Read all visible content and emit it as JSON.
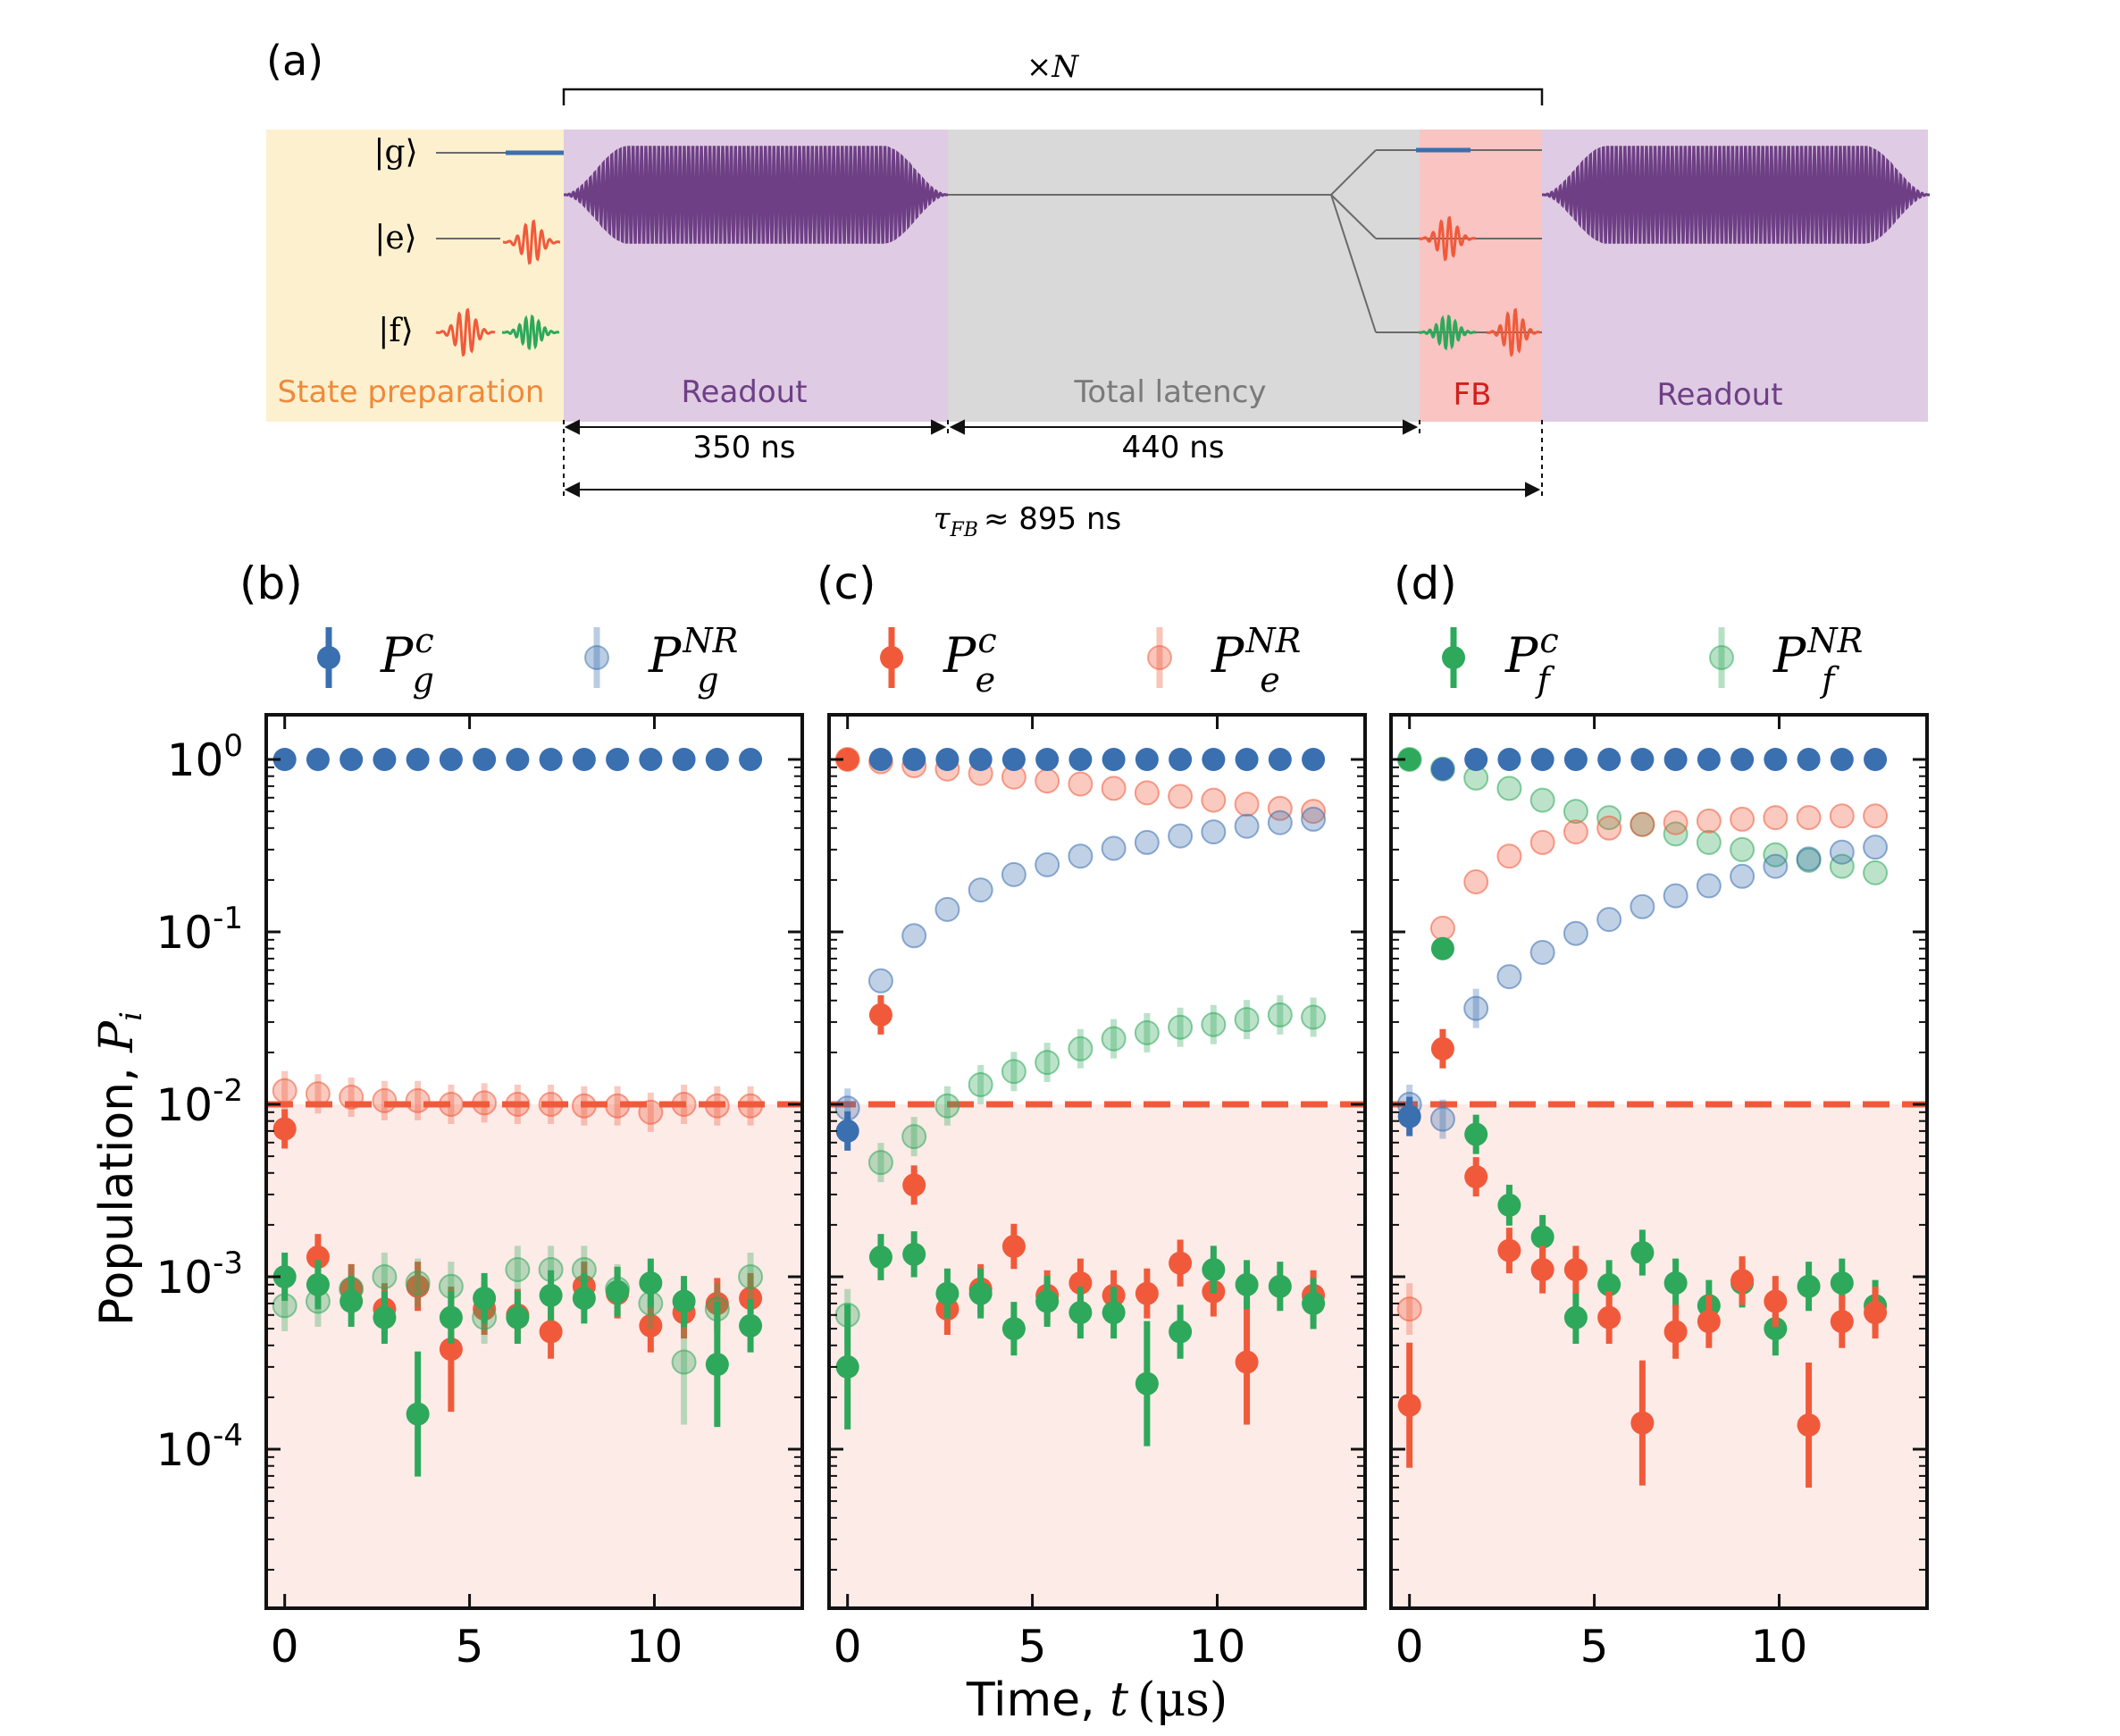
{
  "colors": {
    "g": "#3a6fb0",
    "e": "#f05a3a",
    "f": "#2ea85a",
    "prep_bg": "#fdf0cf",
    "readout_bg": "#dfcbe4",
    "latency_bg": "#d9d9d9",
    "fb_bg": "#f9c4c2",
    "shade": "#fdebe8",
    "purple": "#6e3f85"
  },
  "schematic": {
    "panel_label": "(a)",
    "repeat_label": "×N",
    "levels": [
      "|g⟩",
      "|e⟩",
      "|f⟩"
    ],
    "blocks": {
      "prep": "State preparation",
      "readout1": "Readout",
      "latency": "Total latency",
      "fb": "FB",
      "readout2": "Readout"
    },
    "dim_readout": "350 ns",
    "dim_latency": "440 ns",
    "tau_symbol": "τ",
    "tau_sub": "FB",
    "tau_value": "≈ 895 ns"
  },
  "axis": {
    "ylabel_prefix": "Population, ",
    "ylabel_symbol": "P",
    "ylabel_sub": "i",
    "xlabel_prefix": "Time, ",
    "xlabel_symbol": "t",
    "xlabel_unit": "(μs)"
  },
  "chart_data": [
    {
      "type": "scatter",
      "panel_label": "(b)",
      "legend": [
        {
          "sym": "P",
          "sub": "g",
          "sup": "c",
          "series": "g",
          "faded": false
        },
        {
          "sym": "P",
          "sub": "g",
          "sup": "NR",
          "series": "g",
          "faded": true
        }
      ],
      "xlim": [
        -0.5,
        14
      ],
      "ylim": [
        1e-05,
        2
      ],
      "yscale": "log",
      "xticks": [
        0,
        5,
        10
      ],
      "yticks": [
        "10^0",
        "10^-1",
        "10^-2",
        "10^-3",
        "10^-4"
      ],
      "threshold": 0.01,
      "x": [
        0,
        0.9,
        1.8,
        2.7,
        3.6,
        4.5,
        5.4,
        6.3,
        7.2,
        8.1,
        9.0,
        9.9,
        10.8,
        11.7,
        12.6
      ],
      "series": [
        {
          "level": "g",
          "faded": false,
          "y": [
            1,
            1,
            1,
            1,
            1,
            1,
            1,
            1,
            1,
            1,
            1,
            1,
            1,
            1,
            1
          ]
        },
        {
          "level": "e",
          "faded": true,
          "y": [
            0.012,
            0.0115,
            0.011,
            0.0105,
            0.0105,
            0.01,
            0.0102,
            0.01,
            0.01,
            0.0098,
            0.0098,
            0.009,
            0.01,
            0.0098,
            0.0098
          ]
        },
        {
          "level": "e",
          "faded": false,
          "y": [
            0.0072,
            0.0013,
            0.00085,
            0.00065,
            0.00088,
            0.00038,
            0.00065,
            0.0006,
            0.00048,
            0.00088,
            0.0008,
            0.00052,
            0.00062,
            0.0007,
            0.00075
          ]
        },
        {
          "level": "f",
          "faded": true,
          "y": [
            0.00068,
            0.00072,
            0.00085,
            0.001,
            0.00092,
            0.00088,
            0.00058,
            0.0011,
            0.0011,
            0.0011,
            0.00085,
            0.0007,
            0.00032,
            0.00065,
            0.001
          ]
        },
        {
          "level": "f",
          "faded": false,
          "y": [
            0.001,
            0.0009,
            0.00072,
            0.00058,
            0.00016,
            0.00058,
            0.00075,
            0.00058,
            0.00078,
            0.00075,
            0.00082,
            0.00092,
            0.00072,
            0.00031,
            0.00052
          ]
        }
      ]
    },
    {
      "type": "scatter",
      "panel_label": "(c)",
      "legend": [
        {
          "sym": "P",
          "sub": "e",
          "sup": "c",
          "series": "e",
          "faded": false
        },
        {
          "sym": "P",
          "sub": "e",
          "sup": "NR",
          "series": "e",
          "faded": true
        }
      ],
      "xlim": [
        -0.5,
        14
      ],
      "ylim": [
        1e-05,
        2
      ],
      "yscale": "log",
      "xticks": [
        0,
        5,
        10
      ],
      "threshold": 0.01,
      "x": [
        0,
        0.9,
        1.8,
        2.7,
        3.6,
        4.5,
        5.4,
        6.3,
        7.2,
        8.1,
        9.0,
        9.9,
        10.8,
        11.7,
        12.6
      ],
      "series": [
        {
          "level": "e",
          "faded": true,
          "y": [
            1,
            0.97,
            0.92,
            0.88,
            0.83,
            0.79,
            0.75,
            0.72,
            0.68,
            0.64,
            0.61,
            0.58,
            0.55,
            0.52,
            0.5
          ]
        },
        {
          "level": "g",
          "faded": true,
          "y": [
            0.0095,
            0.052,
            0.095,
            0.135,
            0.175,
            0.215,
            0.245,
            0.275,
            0.305,
            0.33,
            0.36,
            0.38,
            0.41,
            0.43,
            0.45
          ]
        },
        {
          "level": "f",
          "faded": true,
          "y": [
            0.0006,
            0.0046,
            0.0065,
            0.0098,
            0.013,
            0.0155,
            0.0175,
            0.021,
            0.024,
            0.026,
            0.028,
            0.029,
            0.031,
            0.033,
            0.032
          ]
        },
        {
          "level": "g",
          "faded": false,
          "y": [
            0.007,
            1,
            1,
            1,
            1,
            1,
            1,
            1,
            1,
            1,
            1,
            1,
            1,
            1,
            1
          ]
        },
        {
          "level": "e",
          "faded": false,
          "y": [
            1,
            0.033,
            0.0034,
            0.00065,
            0.00085,
            0.0015,
            0.00078,
            0.00092,
            0.00078,
            0.0008,
            0.0012,
            0.00082,
            0.00032,
            null,
            0.00078
          ]
        },
        {
          "level": "f",
          "faded": false,
          "y": [
            0.0003,
            0.0013,
            0.00135,
            0.0008,
            0.0008,
            0.0005,
            0.00072,
            0.00062,
            0.00062,
            0.00024,
            0.00048,
            0.0011,
            0.0009,
            0.00088,
            0.0007
          ]
        }
      ]
    },
    {
      "type": "scatter",
      "panel_label": "(d)",
      "legend": [
        {
          "sym": "P",
          "sub": "f",
          "sup": "c",
          "series": "f",
          "faded": false
        },
        {
          "sym": "P",
          "sub": "f",
          "sup": "NR",
          "series": "f",
          "faded": true
        }
      ],
      "xlim": [
        -0.5,
        14
      ],
      "ylim": [
        1e-05,
        2
      ],
      "yscale": "log",
      "xticks": [
        0,
        5,
        10
      ],
      "threshold": 0.01,
      "x": [
        0,
        0.9,
        1.8,
        2.7,
        3.6,
        4.5,
        5.4,
        6.3,
        7.2,
        8.1,
        9.0,
        9.9,
        10.8,
        11.7,
        12.6
      ],
      "series": [
        {
          "level": "f",
          "faded": true,
          "y": [
            1,
            0.88,
            0.78,
            0.68,
            0.58,
            0.5,
            0.46,
            0.42,
            0.37,
            0.33,
            0.3,
            0.28,
            0.26,
            0.24,
            0.22
          ]
        },
        {
          "level": "e",
          "faded": true,
          "y": [
            0.00065,
            0.105,
            0.195,
            0.275,
            0.33,
            0.38,
            0.4,
            0.42,
            0.43,
            0.44,
            0.45,
            0.46,
            0.46,
            0.47,
            0.47
          ]
        },
        {
          "level": "g",
          "faded": true,
          "y": [
            0.01,
            0.0082,
            0.036,
            0.055,
            0.076,
            0.098,
            0.118,
            0.14,
            0.162,
            0.185,
            0.21,
            0.24,
            0.265,
            0.29,
            0.31
          ]
        },
        {
          "level": "g",
          "faded": false,
          "y": [
            0.0085,
            0.88,
            1,
            1,
            1,
            1,
            1,
            1,
            1,
            1,
            1,
            1,
            1,
            1,
            1
          ]
        },
        {
          "level": "f",
          "faded": false,
          "y": [
            1,
            0.08,
            0.0067,
            0.0026,
            0.0017,
            0.00058,
            0.0009,
            0.00138,
            0.00092,
            0.00068,
            0.00092,
            0.0005,
            0.00088,
            0.00092,
            0.00068
          ]
        },
        {
          "level": "e",
          "faded": false,
          "y": [
            0.00018,
            0.021,
            0.0038,
            0.00142,
            0.0011,
            0.0011,
            0.00058,
            0.000142,
            0.00048,
            0.00055,
            0.00095,
            0.00072,
            0.000138,
            0.00055,
            0.00062
          ]
        }
      ]
    }
  ]
}
